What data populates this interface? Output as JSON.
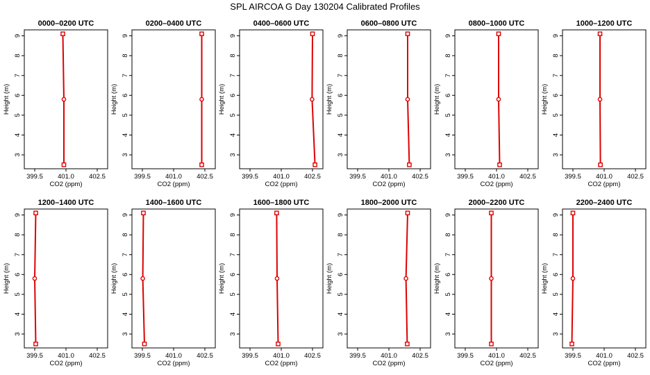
{
  "chart_data": {
    "type": "line",
    "title": "SPL AIRCOA G  Day 130204  Calibrated Profiles",
    "xlabel": "CO2 (ppm)",
    "ylabel": "Height (m)",
    "xlim": [
      399.0,
      403.0
    ],
    "ylim": [
      2.3,
      9.3
    ],
    "xticks": [
      "399.5",
      "401.0",
      "402.5"
    ],
    "xtick_values": [
      399.5,
      401.0,
      402.5
    ],
    "yticks": [
      "3",
      "4",
      "5",
      "6",
      "7",
      "8",
      "9"
    ],
    "ytick_values": [
      3,
      4,
      5,
      6,
      7,
      8,
      9
    ],
    "line_color": "#dd0000",
    "panels": [
      {
        "title": "0000–0200 UTC",
        "x": [
          400.85,
          400.9,
          400.9
        ],
        "y": [
          9.1,
          5.8,
          2.5
        ]
      },
      {
        "title": "0200–0400 UTC",
        "x": [
          402.35,
          402.35,
          402.35
        ],
        "y": [
          9.1,
          5.8,
          2.5
        ]
      },
      {
        "title": "0400–0600 UTC",
        "x": [
          402.5,
          402.48,
          402.62
        ],
        "y": [
          9.1,
          5.8,
          2.5
        ]
      },
      {
        "title": "0600–0800 UTC",
        "x": [
          401.9,
          401.9,
          401.98
        ],
        "y": [
          9.1,
          5.8,
          2.5
        ]
      },
      {
        "title": "0800–1000 UTC",
        "x": [
          401.1,
          401.1,
          401.15
        ],
        "y": [
          9.1,
          5.8,
          2.5
        ]
      },
      {
        "title": "1000–1200 UTC",
        "x": [
          400.8,
          400.8,
          400.82
        ],
        "y": [
          9.1,
          5.8,
          2.5
        ]
      },
      {
        "title": "1200–1400 UTC",
        "x": [
          399.55,
          399.5,
          399.55
        ],
        "y": [
          9.1,
          5.8,
          2.5
        ]
      },
      {
        "title": "1400–1600 UTC",
        "x": [
          399.55,
          399.52,
          399.6
        ],
        "y": [
          9.1,
          5.8,
          2.5
        ]
      },
      {
        "title": "1600–1800 UTC",
        "x": [
          400.78,
          400.8,
          400.85
        ],
        "y": [
          9.1,
          5.8,
          2.5
        ]
      },
      {
        "title": "1800–2000 UTC",
        "x": [
          401.9,
          401.82,
          401.88
        ],
        "y": [
          9.1,
          5.8,
          2.5
        ]
      },
      {
        "title": "2000–2200 UTC",
        "x": [
          400.75,
          400.75,
          400.75
        ],
        "y": [
          9.1,
          5.8,
          2.5
        ]
      },
      {
        "title": "2200–2400 UTC",
        "x": [
          399.5,
          399.5,
          399.45
        ],
        "y": [
          9.1,
          5.8,
          2.5
        ]
      }
    ]
  }
}
